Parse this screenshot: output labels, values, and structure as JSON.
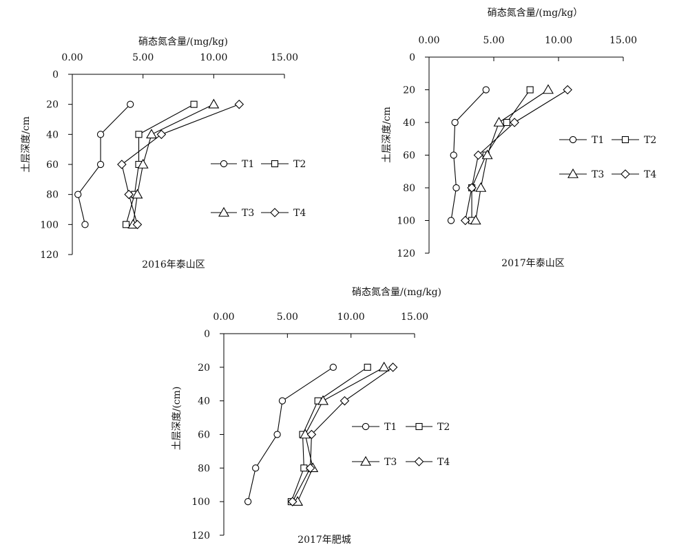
{
  "chart_data": [
    {
      "type": "line",
      "title": "2016年泰山区",
      "xlabel": "硝态氮含量/(mg/kg)",
      "ylabel": "土层深度/cm",
      "xlim": [
        0,
        15
      ],
      "ylim": [
        0,
        120
      ],
      "x_ticks": [
        "0.00",
        "5.00",
        "10.00",
        "15.00"
      ],
      "y_ticks": [
        "0",
        "20",
        "40",
        "60",
        "80",
        "100",
        "120"
      ],
      "y_inverted": true,
      "grid": false,
      "legend_position": "right",
      "series": [
        {
          "name": "T1",
          "marker": "circle",
          "points": [
            {
              "x": 4.1,
              "y": 20
            },
            {
              "x": 2.0,
              "y": 40
            },
            {
              "x": 2.0,
              "y": 60
            },
            {
              "x": 0.4,
              "y": 80
            },
            {
              "x": 0.9,
              "y": 100
            }
          ]
        },
        {
          "name": "T2",
          "marker": "square",
          "points": [
            {
              "x": 8.6,
              "y": 20
            },
            {
              "x": 4.7,
              "y": 40
            },
            {
              "x": 4.7,
              "y": 60
            },
            {
              "x": 4.4,
              "y": 80
            },
            {
              "x": 3.8,
              "y": 100
            }
          ]
        },
        {
          "name": "T3",
          "marker": "triangle",
          "points": [
            {
              "x": 10.0,
              "y": 20
            },
            {
              "x": 5.6,
              "y": 40
            },
            {
              "x": 5.0,
              "y": 60
            },
            {
              "x": 4.6,
              "y": 80
            },
            {
              "x": 4.3,
              "y": 100
            }
          ]
        },
        {
          "name": "T4",
          "marker": "diamond",
          "points": [
            {
              "x": 11.8,
              "y": 20
            },
            {
              "x": 6.3,
              "y": 40
            },
            {
              "x": 3.5,
              "y": 60
            },
            {
              "x": 4.0,
              "y": 80
            },
            {
              "x": 4.6,
              "y": 100
            }
          ]
        }
      ]
    },
    {
      "type": "line",
      "title": "2017年泰山区",
      "xlabel": "硝态氮含量/(mg/kg）",
      "ylabel": "土层深度/cm",
      "xlim": [
        0,
        15
      ],
      "ylim": [
        0,
        120
      ],
      "x_ticks": [
        "0.00",
        "5.00",
        "10.00",
        "15.00"
      ],
      "y_ticks": [
        "0",
        "20",
        "40",
        "60",
        "80",
        "100",
        "120"
      ],
      "y_inverted": true,
      "grid": false,
      "legend_position": "right",
      "series": [
        {
          "name": "T1",
          "marker": "circle",
          "points": [
            {
              "x": 4.4,
              "y": 20
            },
            {
              "x": 2.0,
              "y": 40
            },
            {
              "x": 1.9,
              "y": 60
            },
            {
              "x": 2.1,
              "y": 80
            },
            {
              "x": 1.7,
              "y": 100
            }
          ]
        },
        {
          "name": "T2",
          "marker": "square",
          "points": [
            {
              "x": 7.8,
              "y": 20
            },
            {
              "x": 6.0,
              "y": 40
            },
            {
              "x": 4.4,
              "y": 60
            },
            {
              "x": 3.3,
              "y": 80
            },
            {
              "x": 3.3,
              "y": 100
            }
          ]
        },
        {
          "name": "T3",
          "marker": "triangle",
          "points": [
            {
              "x": 9.2,
              "y": 20
            },
            {
              "x": 5.4,
              "y": 40
            },
            {
              "x": 4.5,
              "y": 60
            },
            {
              "x": 4.0,
              "y": 80
            },
            {
              "x": 3.6,
              "y": 100
            }
          ]
        },
        {
          "name": "T4",
          "marker": "diamond",
          "points": [
            {
              "x": 10.7,
              "y": 20
            },
            {
              "x": 6.6,
              "y": 40
            },
            {
              "x": 3.8,
              "y": 60
            },
            {
              "x": 3.3,
              "y": 80
            },
            {
              "x": 2.8,
              "y": 100
            }
          ]
        }
      ]
    },
    {
      "type": "line",
      "title": "2017年肥城",
      "xlabel": "硝态氮含量/(mg/kg)",
      "ylabel": "土层深度/(cm)",
      "xlim": [
        0,
        15
      ],
      "ylim": [
        0,
        120
      ],
      "x_ticks": [
        "0.00",
        "5.00",
        "10.00",
        "15.00"
      ],
      "y_ticks": [
        "0",
        "20",
        "40",
        "60",
        "80",
        "100",
        "120"
      ],
      "y_inverted": true,
      "grid": false,
      "legend_position": "right",
      "series": [
        {
          "name": "T1",
          "marker": "circle",
          "points": [
            {
              "x": 8.6,
              "y": 20
            },
            {
              "x": 4.6,
              "y": 40
            },
            {
              "x": 4.2,
              "y": 60
            },
            {
              "x": 2.5,
              "y": 80
            },
            {
              "x": 1.9,
              "y": 100
            }
          ]
        },
        {
          "name": "T2",
          "marker": "square",
          "points": [
            {
              "x": 11.3,
              "y": 20
            },
            {
              "x": 7.4,
              "y": 40
            },
            {
              "x": 6.2,
              "y": 60
            },
            {
              "x": 6.3,
              "y": 80
            },
            {
              "x": 5.3,
              "y": 100
            }
          ]
        },
        {
          "name": "T3",
          "marker": "triangle",
          "points": [
            {
              "x": 12.6,
              "y": 20
            },
            {
              "x": 7.8,
              "y": 40
            },
            {
              "x": 6.4,
              "y": 60
            },
            {
              "x": 7.0,
              "y": 80
            },
            {
              "x": 5.8,
              "y": 100
            }
          ]
        },
        {
          "name": "T4",
          "marker": "diamond",
          "points": [
            {
              "x": 13.3,
              "y": 20
            },
            {
              "x": 9.5,
              "y": 40
            },
            {
              "x": 6.9,
              "y": 60
            },
            {
              "x": 6.8,
              "y": 80
            },
            {
              "x": 5.4,
              "y": 100
            }
          ]
        }
      ]
    }
  ]
}
